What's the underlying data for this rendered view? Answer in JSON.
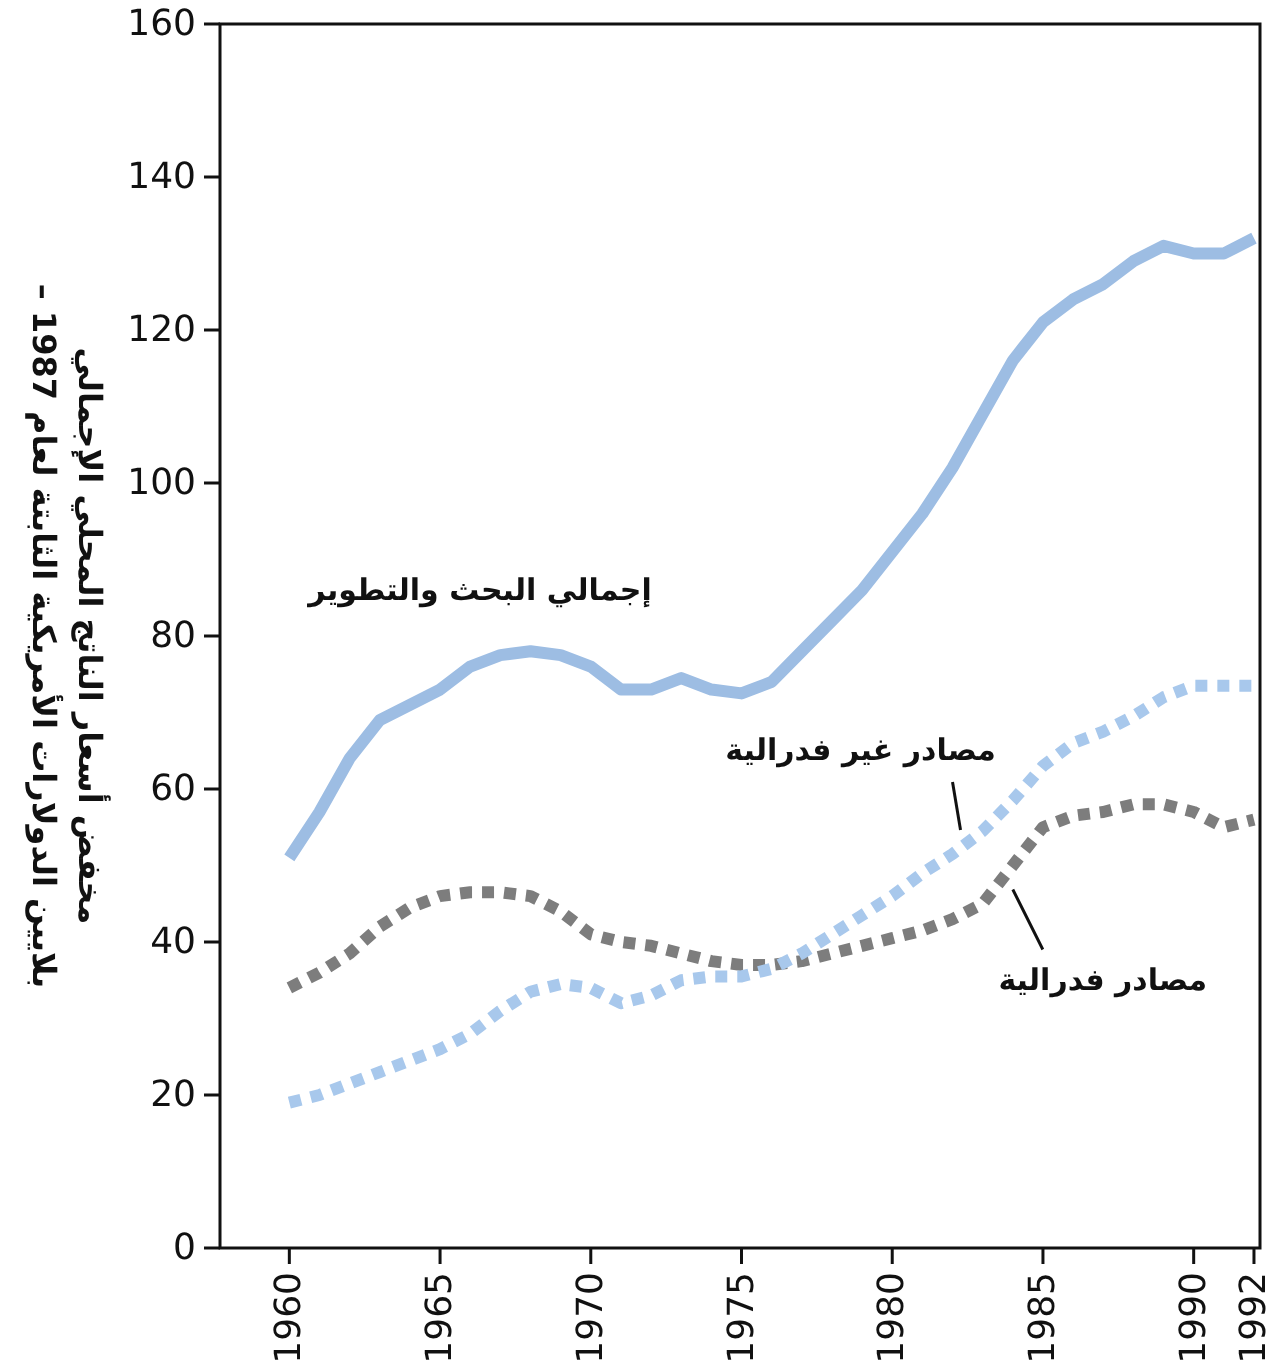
{
  "chart_data": {
    "type": "line",
    "ylabel": "بلايين الدولارات الأمريكية الثابتة لعام 1987 –\nمخفض أسعار الناتج المحلي الإجمالي",
    "x": [
      1960,
      1961,
      1962,
      1963,
      1964,
      1965,
      1966,
      1967,
      1968,
      1969,
      1970,
      1971,
      1972,
      1973,
      1974,
      1975,
      1976,
      1977,
      1978,
      1979,
      1980,
      1981,
      1982,
      1983,
      1984,
      1985,
      1986,
      1987,
      1988,
      1989,
      1990,
      1991,
      1992
    ],
    "xlim": [
      1957.7,
      1992.2
    ],
    "xticks": [
      1960,
      1965,
      1970,
      1975,
      1980,
      1985,
      1990,
      1992
    ],
    "ylim": [
      0,
      160
    ],
    "yticks": [
      0,
      20,
      40,
      60,
      80,
      100,
      120,
      140,
      160
    ],
    "grid": false,
    "legend": false,
    "series": [
      {
        "name": "إجمالي البحث والتطوير",
        "color": "#9dbde3",
        "line_style": "solid",
        "values": [
          51,
          57,
          64,
          69,
          71,
          73,
          76,
          77.5,
          78,
          77.5,
          76,
          73,
          73,
          74.5,
          73,
          72.5,
          74,
          78,
          82,
          86,
          91,
          96,
          102,
          109,
          116,
          121,
          124,
          126,
          129,
          131,
          130,
          130,
          132
        ]
      },
      {
        "name": "مصادر فدرالية",
        "color": "#7d7d7d",
        "line_style": "dotted",
        "values": [
          34,
          36,
          38.5,
          42,
          44.5,
          46,
          46.5,
          46.5,
          46,
          44,
          41,
          40,
          39.5,
          38.5,
          37.5,
          37,
          37,
          37.5,
          38.5,
          39.5,
          40.5,
          41.5,
          43,
          45,
          50,
          55,
          56.5,
          57,
          58,
          58,
          57,
          55,
          56
        ]
      },
      {
        "name": "مصادر غير فدرالية",
        "color": "#a8c8ec",
        "line_style": "dotted",
        "values": [
          19,
          20,
          21.5,
          23,
          24.5,
          26,
          28,
          31,
          33.5,
          34.5,
          34,
          32,
          33,
          35,
          35.5,
          35.5,
          36.5,
          38.5,
          41,
          43.5,
          46,
          49,
          51.5,
          54.5,
          58.5,
          63,
          66,
          67.5,
          69.5,
          72,
          73.5,
          73.5,
          73.5
        ]
      }
    ]
  }
}
